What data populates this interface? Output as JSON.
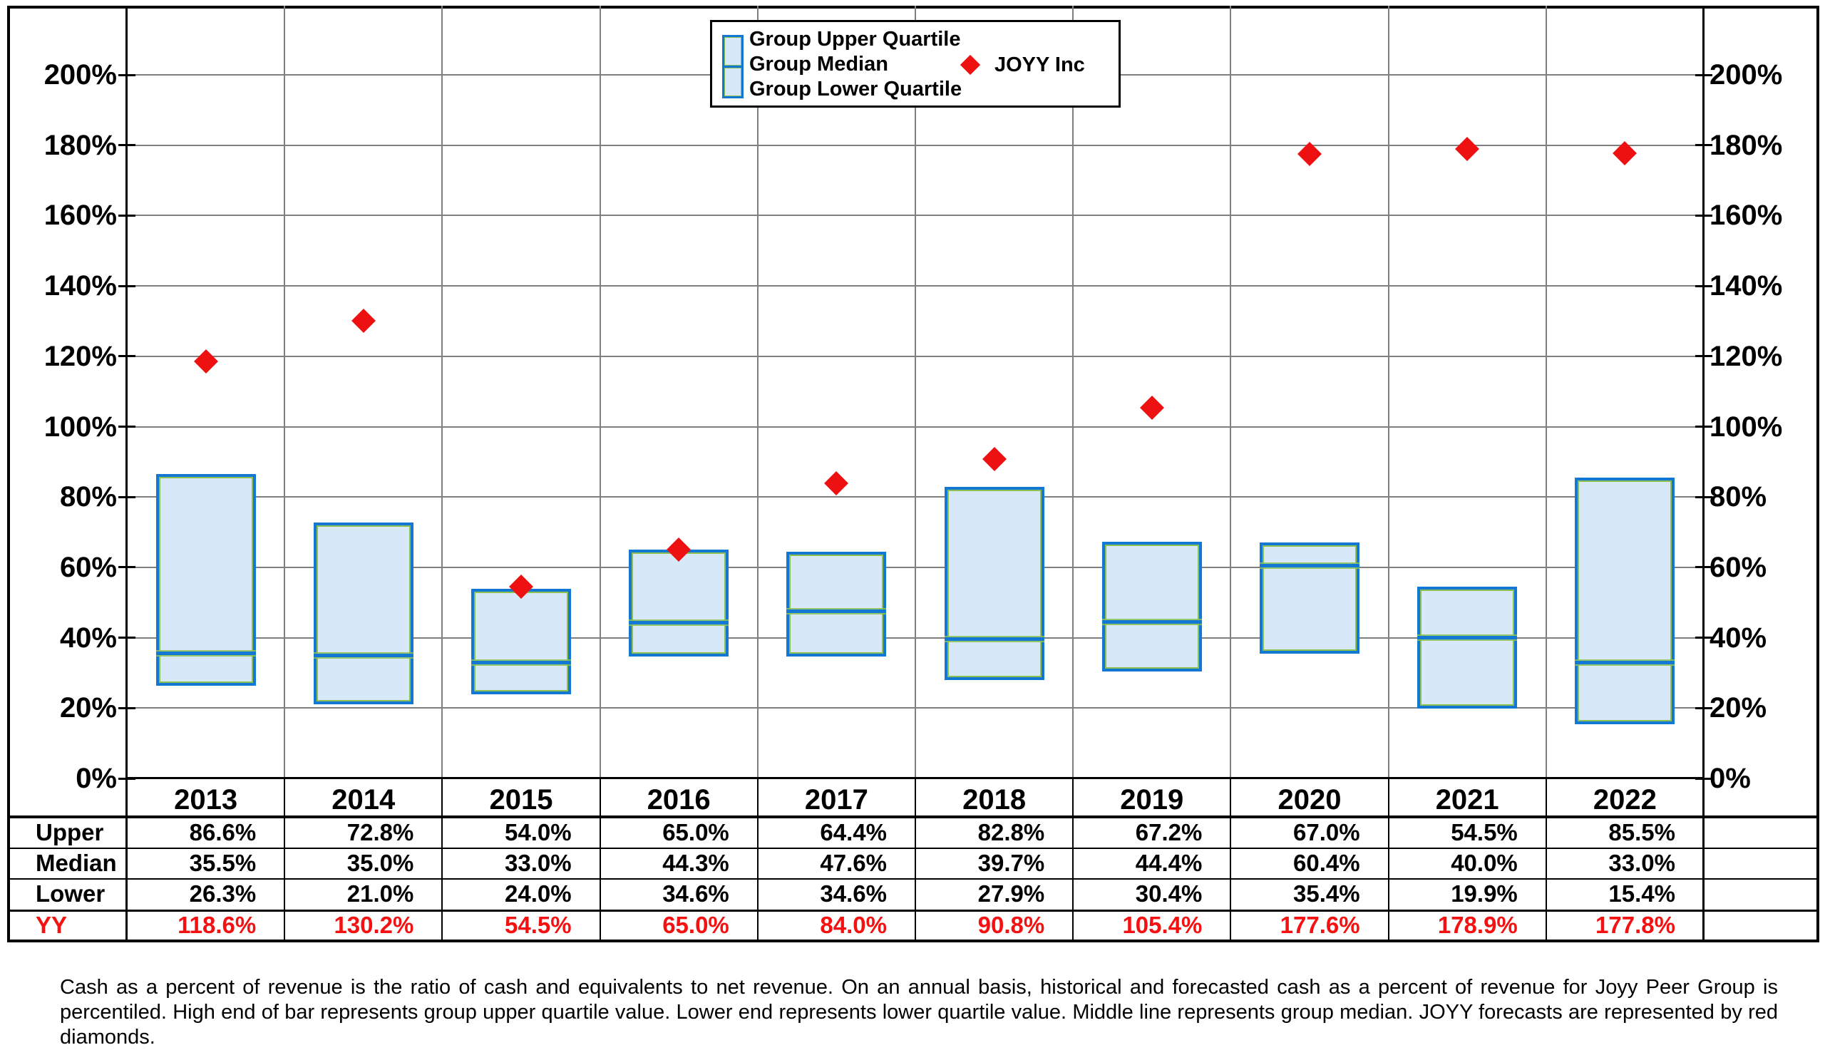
{
  "legend": {
    "upper_label": "Group Upper Quartile",
    "median_label": "Group Median",
    "lower_label": "Group Lower Quartile",
    "series_label": "JOYY Inc"
  },
  "chart_data": {
    "type": "bar",
    "subtype": "floating-quartile-bars-with-scatter",
    "categories": [
      "2013",
      "2014",
      "2015",
      "2016",
      "2017",
      "2018",
      "2019",
      "2020",
      "2021",
      "2022"
    ],
    "series": [
      {
        "name": "Group Upper Quartile",
        "values": [
          86.6,
          72.8,
          54.0,
          65.0,
          64.4,
          82.8,
          67.2,
          67.0,
          54.5,
          85.5
        ]
      },
      {
        "name": "Group Median",
        "values": [
          35.5,
          35.0,
          33.0,
          44.3,
          47.6,
          39.7,
          44.4,
          60.4,
          40.0,
          33.0
        ]
      },
      {
        "name": "Group Lower Quartile",
        "values": [
          26.3,
          21.0,
          24.0,
          34.6,
          34.6,
          27.9,
          30.4,
          35.4,
          19.9,
          15.4
        ]
      },
      {
        "name": "JOYY Inc",
        "marker": "diamond",
        "values": [
          118.6,
          130.2,
          54.5,
          65.0,
          84.0,
          90.8,
          105.4,
          177.6,
          178.9,
          177.8
        ]
      }
    ],
    "ylim": [
      0,
      220
    ],
    "y_ticks": [
      0,
      20,
      40,
      60,
      80,
      100,
      120,
      140,
      160,
      180,
      200
    ],
    "y_tick_suffix": "%",
    "grid": true,
    "legend_position": "top-center",
    "dual_y_axis_labels": true
  },
  "table": {
    "row_labels": [
      "Upper",
      "Median",
      "Lower",
      "YY"
    ],
    "rows": [
      [
        "86.6%",
        "72.8%",
        "54.0%",
        "65.0%",
        "64.4%",
        "82.8%",
        "67.2%",
        "67.0%",
        "54.5%",
        "85.5%"
      ],
      [
        "35.5%",
        "35.0%",
        "33.0%",
        "44.3%",
        "47.6%",
        "39.7%",
        "44.4%",
        "60.4%",
        "40.0%",
        "33.0%"
      ],
      [
        "26.3%",
        "21.0%",
        "24.0%",
        "34.6%",
        "34.6%",
        "27.9%",
        "30.4%",
        "35.4%",
        "19.9%",
        "15.4%"
      ],
      [
        "118.6%",
        "130.2%",
        "54.5%",
        "65.0%",
        "84.0%",
        "90.8%",
        "105.4%",
        "177.6%",
        "178.9%",
        "177.8%"
      ]
    ],
    "yy_row_index": 3
  },
  "caption": "Cash as a percent of revenue is the ratio of cash and equivalents to net revenue.  On an annual basis, historical and forecasted cash as a percent of revenue for Joyy Peer Group is percentiled.  High end of bar represents group upper quartile value.  Lower end represents lower quartile value.  Middle line represents group median.  JOYY forecasts are represented by red diamonds.",
  "colors": {
    "bar_fill": "#d7e9f9",
    "bar_border": "#1377d4",
    "bar_inner_edge": "#8cc152",
    "diamond_red": "#ee1111",
    "yy_text_red": "#f31111",
    "gridline_gray": "#7f7f7f",
    "axis_black": "#000000"
  }
}
